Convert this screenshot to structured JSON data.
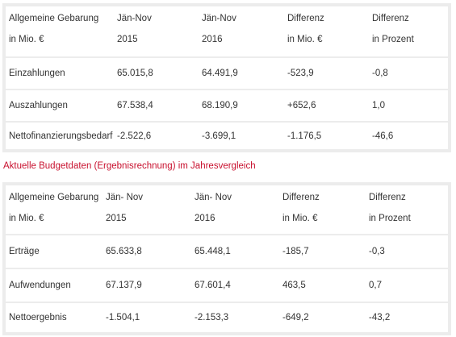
{
  "table1": {
    "header": {
      "col1": [
        "Allgemeine Gebarung",
        "in Mio. €"
      ],
      "col2": [
        "Jän-Nov",
        "2015"
      ],
      "col3": [
        "Jän-Nov",
        "2016"
      ],
      "col4": [
        "Differenz",
        "in Mio. €"
      ],
      "col5": [
        "Differenz",
        "in Prozent"
      ]
    },
    "rows": [
      [
        "Einzahlungen",
        "65.015,8",
        "64.491,9",
        "-523,9",
        "-0,8"
      ],
      [
        "Auszahlungen",
        "67.538,4",
        "68.190,9",
        "+652,6",
        "1,0"
      ],
      [
        "Nettofinanzierungsbedarf",
        "-2.522,6",
        "-3.699,1",
        "-1.176,5",
        "-46,6"
      ]
    ]
  },
  "caption": "Aktuelle Budgetdaten (Ergebnisrechnung) im Jahresvergleich",
  "caption_color": "#c8102e",
  "table2": {
    "header": {
      "col1": [
        "Allgemeine Gebarung",
        "in Mio. €"
      ],
      "col2": [
        "Jän- Nov",
        "2015"
      ],
      "col3": [
        "Jän- Nov",
        "2016"
      ],
      "col4": [
        "Differenz",
        "in Mio. €"
      ],
      "col5": [
        "Differenz",
        "in Prozent"
      ]
    },
    "rows": [
      [
        "Erträge",
        "65.633,8",
        "65.448,1",
        "-185,7",
        "-0,3"
      ],
      [
        "Aufwendungen",
        "67.137,9",
        "67.601,4",
        "463,5",
        "0,7"
      ],
      [
        "Nettoergebnis",
        "-1.504,1",
        "-2.153,3",
        "-649,2",
        "-43,2"
      ]
    ]
  }
}
